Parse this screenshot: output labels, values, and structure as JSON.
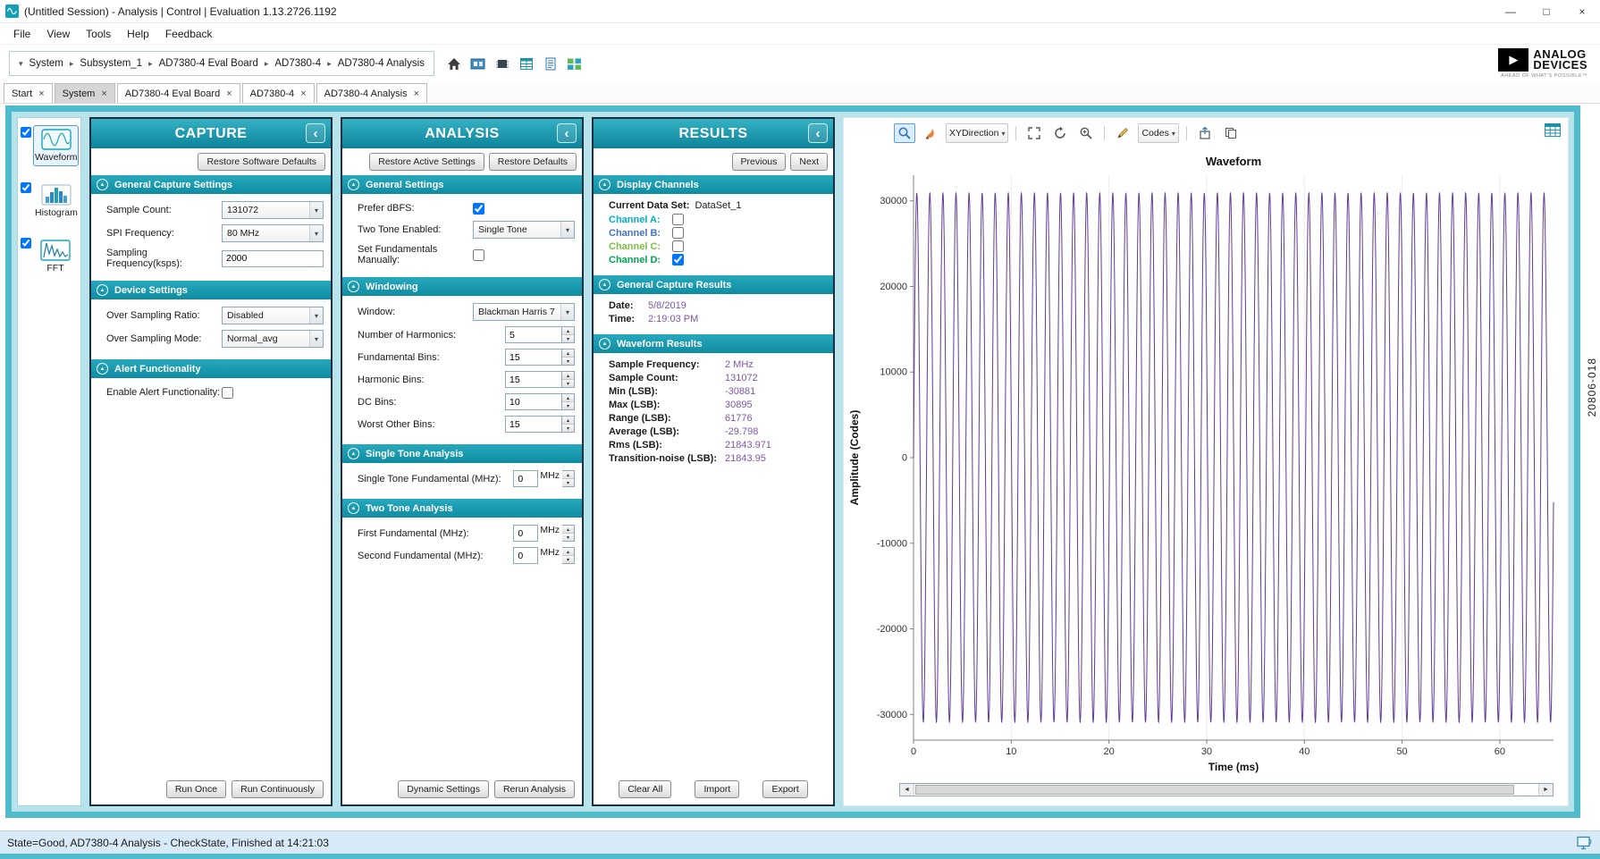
{
  "window": {
    "title": "(Untitled Session) - Analysis | Control | Evaluation 1.13.2726.1192",
    "menu": [
      "File",
      "View",
      "Tools",
      "Help",
      "Feedback"
    ]
  },
  "breadcrumb": {
    "items": [
      "System",
      "Subsystem_1",
      "AD7380-4 Eval Board",
      "AD7380-4",
      "AD7380-4 Analysis"
    ]
  },
  "logo": {
    "line1": "ANALOG",
    "line2": "DEVICES",
    "tagline": "AHEAD OF WHAT'S POSSIBLE™"
  },
  "tabs": [
    {
      "label": "Start",
      "active": false
    },
    {
      "label": "System",
      "active": true
    },
    {
      "label": "AD7380-4 Eval Board",
      "active": false
    },
    {
      "label": "AD7380-4",
      "active": false
    },
    {
      "label": "AD7380-4 Analysis",
      "active": false
    }
  ],
  "sidebar": {
    "items": [
      {
        "label": "Waveform",
        "checked": true,
        "selected": true
      },
      {
        "label": "Histogram",
        "checked": true,
        "selected": false
      },
      {
        "label": "FFT",
        "checked": true,
        "selected": false
      }
    ]
  },
  "capture": {
    "title": "CAPTURE",
    "restore_button": "Restore Software Defaults",
    "general_section": "General Capture Settings",
    "sample_count_label": "Sample Count:",
    "sample_count_value": "131072",
    "spi_frequency_label": "SPI Frequency:",
    "spi_frequency_value": "80 MHz",
    "sampling_frequency_label": "Sampling Frequency(ksps):",
    "sampling_frequency_value": "2000",
    "device_section": "Device Settings",
    "osr_label": "Over Sampling Ratio:",
    "osr_value": "Disabled",
    "osm_label": "Over Sampling Mode:",
    "osm_value": "Normal_avg",
    "alert_section": "Alert Functionality",
    "alert_label": "Enable Alert Functionality:",
    "alert_checked": false,
    "run_once": "Run Once",
    "run_continuously": "Run Continuously"
  },
  "analysis": {
    "title": "ANALYSIS",
    "restore_active": "Restore Active Settings",
    "restore_defaults": "Restore Defaults",
    "general_section": "General Settings",
    "prefer_dbfs_label": "Prefer dBFS:",
    "prefer_dbfs_checked": true,
    "two_tone_label": "Two Tone Enabled:",
    "two_tone_value": "Single Tone",
    "set_fundamentals_label": "Set Fundamentals Manually:",
    "set_fundamentals_checked": false,
    "windowing_section": "Windowing",
    "window_label": "Window:",
    "window_value": "Blackman Harris 7",
    "harmonics_label": "Number of Harmonics:",
    "harmonics_value": "5",
    "fundamental_bins_label": "Fundamental Bins:",
    "fundamental_bins_value": "15",
    "harmonic_bins_label": "Harmonic Bins:",
    "harmonic_bins_value": "15",
    "dc_bins_label": "DC Bins:",
    "dc_bins_value": "10",
    "worst_other_bins_label": "Worst Other Bins:",
    "worst_other_bins_value": "15",
    "single_tone_section": "Single Tone Analysis",
    "single_tone_label": "Single Tone Fundamental (MHz):",
    "single_tone_value": "0",
    "two_tone_section": "Two Tone Analysis",
    "first_fundamental_label": "First Fundamental (MHz):",
    "first_fundamental_value": "0",
    "second_fundamental_label": "Second Fundamental (MHz):",
    "second_fundamental_value": "0",
    "mhz_unit": "MHz",
    "dynamic_settings": "Dynamic Settings",
    "rerun_analysis": "Rerun Analysis"
  },
  "results": {
    "title": "RESULTS",
    "previous": "Previous",
    "next": "Next",
    "display_section": "Display Channels",
    "current_data_set_label": "Current Data Set:",
    "current_data_set_value": "DataSet_1",
    "channels": [
      {
        "label": "Channel A:",
        "checked": false,
        "color": "#00b0c8"
      },
      {
        "label": "Channel B:",
        "checked": false,
        "color": "#4472c4"
      },
      {
        "label": "Channel C:",
        "checked": false,
        "color": "#7ac143"
      },
      {
        "label": "Channel D:",
        "checked": true,
        "color": "#00a650"
      }
    ],
    "capture_section": "General Capture Results",
    "date_label": "Date:",
    "date_value": "5/8/2019",
    "time_label": "Time:",
    "time_value": "2:19:03 PM",
    "waveform_section": "Waveform Results",
    "rows": [
      {
        "label": "Sample Frequency:",
        "value": "2 MHz"
      },
      {
        "label": "Sample Count:",
        "value": "131072"
      },
      {
        "label": "Min (LSB):",
        "value": "-30881"
      },
      {
        "label": "Max (LSB):",
        "value": "30895"
      },
      {
        "label": "Range (LSB):",
        "value": "61776"
      },
      {
        "label": "Average (LSB):",
        "value": "-29.798"
      },
      {
        "label": "Rms (LSB):",
        "value": "21843.971"
      },
      {
        "label": "Transition-noise (LSB):",
        "value": "21843.95"
      }
    ],
    "value_color": "#7d57a5",
    "clear_all": "Clear All",
    "import": "Import",
    "export": "Export"
  },
  "chart": {
    "xy_direction_label": "XYDirection",
    "codes_label": "Codes"
  },
  "chart_data": {
    "type": "line",
    "title": "Waveform",
    "xlabel": "Time (ms)",
    "ylabel": "Amplitude (Codes)",
    "xlim": [
      0,
      65.5
    ],
    "ylim": [
      -33000,
      33000
    ],
    "xticks": [
      0,
      10,
      20,
      30,
      40,
      50,
      60
    ],
    "yticks": [
      30000,
      20000,
      10000,
      0,
      -10000,
      -20000,
      -30000
    ],
    "grid": true,
    "legend": false,
    "series": [
      {
        "name": "Channel D",
        "color": "#5f3d98",
        "waveform": "sine",
        "amplitude": 30888,
        "offset": 7,
        "cycles": 49,
        "duration_ms": 65.536
      }
    ]
  },
  "statusbar": {
    "text": "State=Good, AD7380-4 Analysis - CheckState, Finished at 14:21:03"
  },
  "figure_number": "20806-018",
  "icons": {
    "collapse_left": "‹",
    "section_collapse": "▲",
    "dropdown_arrow": "▾",
    "spin_up": "▴",
    "spin_down": "▾",
    "close": "×",
    "minimize": "—",
    "maximize": "□",
    "crumb_sep": "▸",
    "crumb_down": "▾",
    "scroll_left": "◄",
    "scroll_right": "►"
  }
}
